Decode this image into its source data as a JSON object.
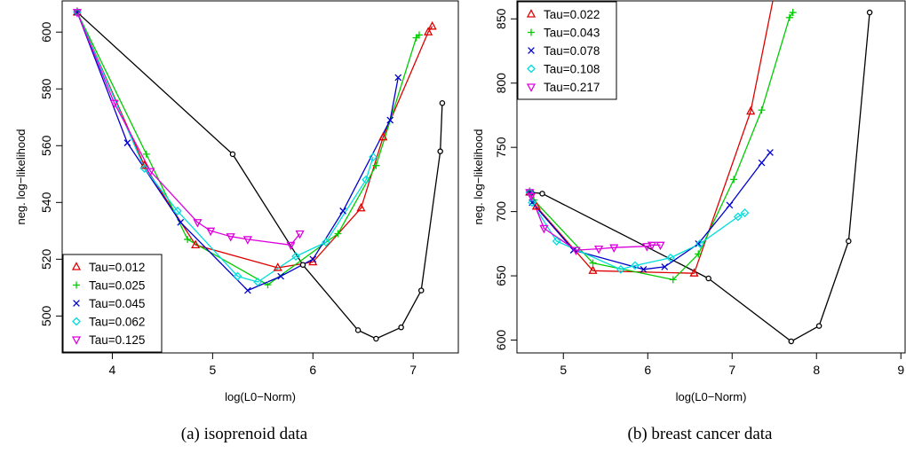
{
  "chart_data": [
    {
      "type": "line",
      "caption": "(a)  isoprenoid data",
      "xlabel": "log(L0−Norm)",
      "ylabel": "neg. log−likelihood",
      "xlim": [
        3.5,
        7.45
      ],
      "ylim": [
        487,
        611
      ],
      "xticks": [
        "4",
        "5",
        "6",
        "7"
      ],
      "yticks": [
        "500",
        "520",
        "540",
        "560",
        "580",
        "600"
      ],
      "legend_position": "bottom-left",
      "series": [
        {
          "name": "",
          "color": "#000000",
          "marker": "circle",
          "points": [
            [
              3.65,
              607
            ],
            [
              5.2,
              557
            ],
            [
              5.9,
              518
            ],
            [
              6.45,
              495
            ],
            [
              6.63,
              492
            ],
            [
              6.88,
              496
            ],
            [
              7.08,
              509
            ],
            [
              7.27,
              558
            ],
            [
              7.29,
              575
            ]
          ]
        },
        {
          "name": "Tau=0.012",
          "color": "#DF0000",
          "marker": "triangle-up",
          "points": [
            [
              3.65,
              607
            ],
            [
              4.32,
              553
            ],
            [
              4.83,
              525
            ],
            [
              5.65,
              517
            ],
            [
              6.0,
              519
            ],
            [
              6.48,
              538
            ],
            [
              6.7,
              563
            ],
            [
              7.15,
              600
            ],
            [
              7.19,
              602
            ]
          ]
        },
        {
          "name": "Tau=0.025",
          "color": "#00CC00",
          "marker": "plus",
          "points": [
            [
              3.65,
              607
            ],
            [
              4.34,
              557
            ],
            [
              4.75,
              527
            ],
            [
              5.55,
              511
            ],
            [
              6.25,
              529
            ],
            [
              6.63,
              553
            ],
            [
              7.03,
              598
            ],
            [
              7.06,
              599
            ]
          ]
        },
        {
          "name": "Tau=0.045",
          "color": "#0000CC",
          "marker": "cross",
          "points": [
            [
              3.65,
              607
            ],
            [
              4.15,
              561
            ],
            [
              4.68,
              533
            ],
            [
              5.35,
              509
            ],
            [
              5.68,
              514
            ],
            [
              6.0,
              520
            ],
            [
              6.3,
              537
            ],
            [
              6.77,
              569
            ],
            [
              6.85,
              584
            ]
          ]
        },
        {
          "name": "Tau=0.062",
          "color": "#00DDDD",
          "marker": "diamond",
          "points": [
            [
              3.65,
              607
            ],
            [
              4.32,
              552
            ],
            [
              4.65,
              537
            ],
            [
              5.25,
              514
            ],
            [
              5.45,
              512
            ],
            [
              5.83,
              521
            ],
            [
              6.13,
              526
            ],
            [
              6.53,
              548
            ],
            [
              6.6,
              556
            ]
          ]
        },
        {
          "name": "Tau=0.125",
          "color": "#DD00DD",
          "marker": "triangle-down",
          "points": [
            [
              3.65,
              607
            ],
            [
              4.02,
              575
            ],
            [
              4.38,
              551
            ],
            [
              4.85,
              533
            ],
            [
              4.98,
              530
            ],
            [
              5.18,
              528
            ],
            [
              5.35,
              527
            ],
            [
              5.78,
              525
            ],
            [
              5.87,
              529
            ]
          ]
        }
      ]
    },
    {
      "type": "line",
      "caption": "(b)  breast cancer data",
      "xlabel": "log(L0−Norm)",
      "ylabel": "neg. log−likelihood",
      "xlim": [
        4.45,
        9.05
      ],
      "ylim": [
        590,
        864
      ],
      "xticks": [
        "5",
        "6",
        "7",
        "8",
        "9"
      ],
      "yticks": [
        "600",
        "650",
        "700",
        "750",
        "800",
        "850"
      ],
      "legend_position": "top-left",
      "series": [
        {
          "name": "",
          "color": "#000000",
          "marker": "circle",
          "points": [
            [
              4.62,
              715
            ],
            [
              4.75,
              714
            ],
            [
              6.72,
              648
            ],
            [
              7.7,
              599
            ],
            [
              8.03,
              611
            ],
            [
              8.38,
              677
            ],
            [
              8.63,
              855
            ]
          ]
        },
        {
          "name": "Tau=0.022",
          "color": "#DF0000",
          "marker": "triangle-up",
          "points": [
            [
              4.6,
              715
            ],
            [
              4.68,
              704
            ],
            [
              5.35,
              654
            ],
            [
              6.55,
              652
            ],
            [
              7.22,
              778
            ],
            [
              7.5,
              870
            ]
          ]
        },
        {
          "name": "Tau=0.043",
          "color": "#00CC00",
          "marker": "plus",
          "points": [
            [
              4.6,
              715
            ],
            [
              4.65,
              709
            ],
            [
              5.35,
              660
            ],
            [
              6.3,
              647
            ],
            [
              6.6,
              667
            ],
            [
              7.02,
              725
            ],
            [
              7.35,
              779
            ],
            [
              7.68,
              851
            ],
            [
              7.72,
              855
            ]
          ]
        },
        {
          "name": "Tau=0.078",
          "color": "#0000CC",
          "marker": "cross",
          "points": [
            [
              4.6,
              715
            ],
            [
              4.63,
              707
            ],
            [
              5.12,
              670
            ],
            [
              5.95,
              655
            ],
            [
              6.2,
              657
            ],
            [
              6.6,
              675
            ],
            [
              6.97,
              705
            ],
            [
              7.35,
              738
            ],
            [
              7.45,
              746
            ]
          ]
        },
        {
          "name": "Tau=0.108",
          "color": "#00DDDD",
          "marker": "diamond",
          "points": [
            [
              4.6,
              715
            ],
            [
              4.63,
              707
            ],
            [
              4.92,
              677
            ],
            [
              5.68,
              655
            ],
            [
              5.85,
              658
            ],
            [
              6.27,
              664
            ],
            [
              6.62,
              675
            ],
            [
              7.07,
              696
            ],
            [
              7.15,
              699
            ]
          ]
        },
        {
          "name": "Tau=0.217",
          "color": "#DD00DD",
          "marker": "triangle-down",
          "points": [
            [
              4.6,
              715
            ],
            [
              4.62,
              712
            ],
            [
              4.77,
              687
            ],
            [
              5.15,
              670
            ],
            [
              5.42,
              671
            ],
            [
              5.6,
              672
            ],
            [
              5.99,
              673
            ],
            [
              6.05,
              674
            ],
            [
              6.15,
              674
            ]
          ]
        }
      ]
    }
  ]
}
